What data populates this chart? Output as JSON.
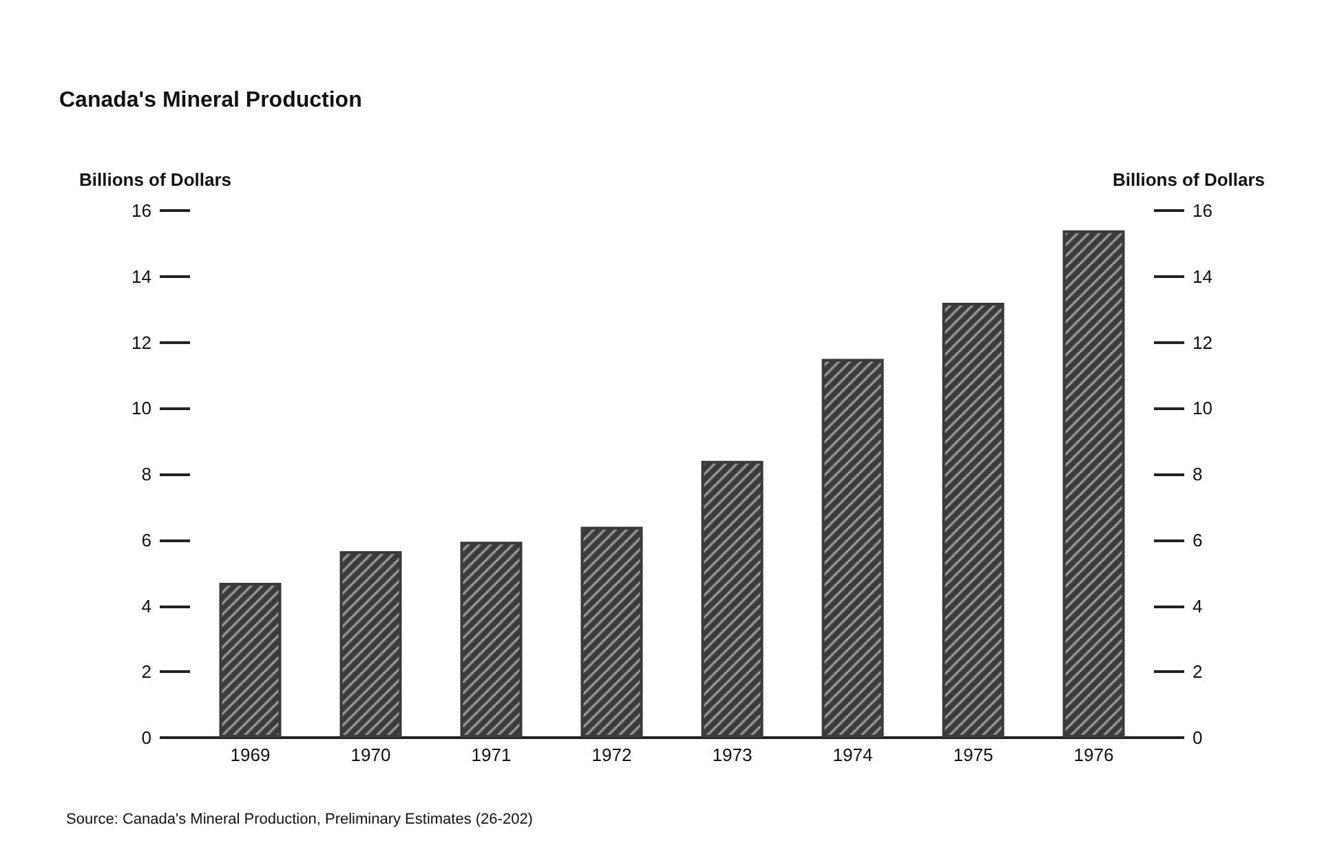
{
  "chart_data": {
    "type": "bar",
    "title": "Canada's Mineral Production",
    "ylabel": "Billions of Dollars",
    "y2label": "Billions of Dollars",
    "categories": [
      "1969",
      "1970",
      "1971",
      "1972",
      "1973",
      "1974",
      "1975",
      "1976"
    ],
    "series": [
      {
        "color": "#3a3a3a",
        "values": [
          4.7,
          5.66,
          5.95,
          6.4,
          8.4,
          11.5,
          13.2,
          15.4
        ]
      }
    ],
    "ylim": [
      0,
      16
    ],
    "yticks": [
      0,
      2,
      4,
      6,
      8,
      10,
      12,
      14,
      16
    ],
    "y2lim": [
      0,
      16
    ],
    "y2ticks": [
      0,
      2,
      4,
      6,
      8,
      10,
      12,
      14,
      16
    ],
    "grid": false,
    "annotations": [
      "Source: Canada's Mineral Production, Preliminary Estimates (26-202)"
    ]
  }
}
